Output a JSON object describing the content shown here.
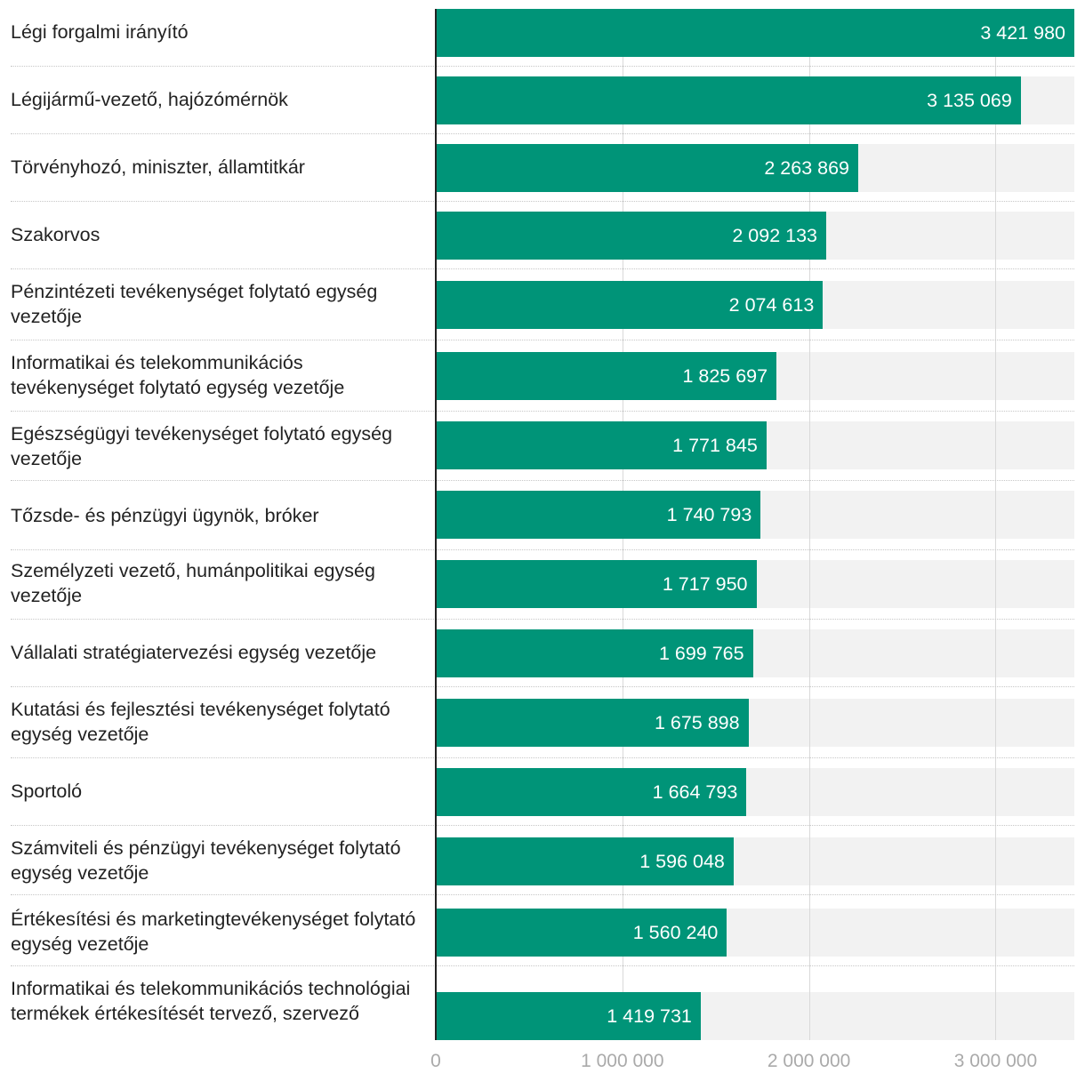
{
  "chart_data": {
    "type": "bar",
    "orientation": "horizontal",
    "categories": [
      "Légi forgalmi irányító",
      "Légijármű-vezető, hajózómérnök",
      "Törvényhozó, miniszter, államtitkár",
      "Szakorvos",
      "Pénzintézeti tevékenységet folytató egység vezetője",
      "Informatikai és telekommunikációs tevékenységet folytató egység vezetője",
      "Egészségügyi tevékenységet folytató egység vezetője",
      "Tőzsde- és pénzügyi ügynök, bróker",
      "Személyzeti vezető, humánpolitikai egység vezetője",
      "Vállalati stratégiatervezési egység vezetője",
      "Kutatási és fejlesztési tevékenységet folytató egység vezetője",
      "Sportoló",
      "Számviteli és pénzügyi tevékenységet folytató egység vezetője",
      "Értékesítési és marketingtevékenységet folytató egység vezetője",
      "Informatikai és telekommunikációs technológiai termékek értékesítését tervező, szervező"
    ],
    "values": [
      3421980,
      3135069,
      2263869,
      2092133,
      2074613,
      1825697,
      1771845,
      1740793,
      1717950,
      1699765,
      1675898,
      1664793,
      1596048,
      1560240,
      1419731
    ],
    "value_labels": [
      "3 421 980",
      "3 135 069",
      "2 263 869",
      "2 092 133",
      "2 074 613",
      "1 825 697",
      "1 771 845",
      "1 740 793",
      "1 717 950",
      "1 699 765",
      "1 675 898",
      "1 664 793",
      "1 596 048",
      "1 560 240",
      "1 419 731"
    ],
    "xlim": [
      0,
      3421980
    ],
    "xticks": [
      0,
      1000000,
      2000000,
      3000000
    ],
    "xtick_labels": [
      "0",
      "1 000 000",
      "2 000 000",
      "3 000 000"
    ],
    "title": "",
    "xlabel": "",
    "ylabel": "",
    "grid": true,
    "legend": "none",
    "bar_color": "#009478",
    "track_color": "#f2f2f2"
  }
}
